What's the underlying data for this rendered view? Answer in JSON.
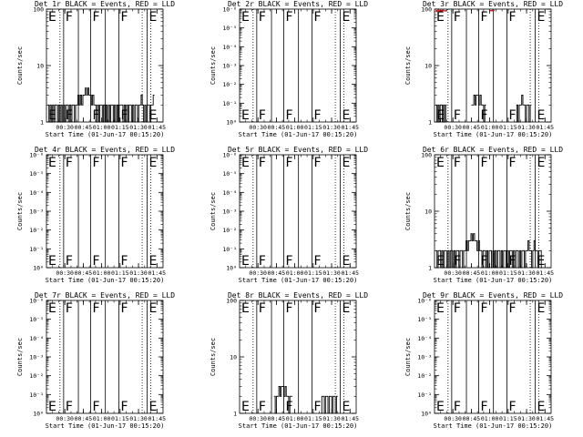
{
  "chart_data": [
    {
      "type": "line",
      "title": "Det 1r BLACK = Events, RED = LLD",
      "xlabel": "Start Time (01-Jun-17 00:15:20)",
      "ylabel": "Counts/sec",
      "yscale": "log",
      "ylim": [
        1,
        100
      ],
      "ytick_labels": [
        "1",
        "10",
        "100"
      ],
      "xlim": [
        0,
        95
      ],
      "xticks": [
        {
          "label": "00:30",
          "x": 15
        },
        {
          "label": "00:45",
          "x": 30
        },
        {
          "label": "01:00",
          "x": 45
        },
        {
          "label": "01:15",
          "x": 60
        },
        {
          "label": "01:30",
          "x": 75
        },
        {
          "label": "01:45",
          "x": 90
        }
      ],
      "flags": [
        {
          "label": "E",
          "x": 0
        },
        {
          "label": "F",
          "x": 14
        },
        {
          "label": "F",
          "x": 36
        },
        {
          "label": "F",
          "x": 59
        },
        {
          "label": "E",
          "x": 82
        }
      ],
      "dotted_lines": [
        11,
        78,
        85
      ],
      "solid_lines": [
        14,
        26,
        36,
        48,
        59,
        82
      ],
      "series": [
        {
          "color": "#000000",
          "segments": [
            {
              "x0": 1,
              "x1": 88,
              "values": [
                2,
                1,
                2,
                1,
                2,
                1,
                2,
                2,
                1,
                2,
                1,
                2,
                1,
                2,
                1,
                2,
                2,
                1,
                2,
                1,
                2,
                2,
                1,
                2,
                2,
                3,
                2,
                3,
                2,
                3,
                3,
                4,
                3,
                4,
                3,
                3,
                2,
                3,
                2,
                2,
                1,
                2,
                1,
                2,
                2,
                1,
                2,
                1,
                2,
                1,
                2,
                1,
                2,
                2,
                1,
                2,
                1,
                2,
                1,
                2,
                2,
                2,
                1,
                2,
                1,
                2,
                1,
                2,
                2,
                1,
                2,
                1,
                2,
                2,
                1,
                2,
                2,
                3,
                2,
                1,
                2,
                1,
                2,
                2,
                1,
                2,
                2,
                3
              ]
            }
          ]
        }
      ]
    },
    {
      "type": "line",
      "title": "Det 2r BLACK = Events, RED = LLD",
      "xlabel": "Start Time (01-Jun-17 00:15:20)",
      "ylabel": "Counts/sec",
      "yscale": "log",
      "ylim": [
        1,
        1000000
      ],
      "ytick_labels": [
        "10⁰",
        "10⁻¹",
        "10⁻²",
        "10⁻³",
        "10⁻⁴",
        "10⁻⁵",
        "10⁻⁶"
      ],
      "xlim": [
        0,
        95
      ],
      "xticks": [
        {
          "label": "00:30",
          "x": 15
        },
        {
          "label": "00:45",
          "x": 30
        },
        {
          "label": "01:00",
          "x": 45
        },
        {
          "label": "01:15",
          "x": 60
        },
        {
          "label": "01:30",
          "x": 75
        },
        {
          "label": "01:45",
          "x": 90
        }
      ],
      "flags": [
        {
          "label": "E",
          "x": 0
        },
        {
          "label": "F",
          "x": 14
        },
        {
          "label": "F",
          "x": 36
        },
        {
          "label": "F",
          "x": 59
        },
        {
          "label": "E",
          "x": 82
        }
      ],
      "dotted_lines": [
        11,
        78,
        85
      ],
      "solid_lines": [
        14,
        26,
        36,
        48,
        59,
        82
      ],
      "series": []
    },
    {
      "type": "line",
      "title": "Det 3r BLACK = Events, RED = LLD",
      "xlabel": "Start Time (01-Jun-17 00:15:20)",
      "ylabel": "Counts/sec",
      "yscale": "log",
      "ylim": [
        1,
        100
      ],
      "ytick_labels": [
        "1",
        "10",
        "100"
      ],
      "xlim": [
        0,
        95
      ],
      "xticks": [
        {
          "label": "00:30",
          "x": 15
        },
        {
          "label": "00:45",
          "x": 30
        },
        {
          "label": "01:00",
          "x": 45
        },
        {
          "label": "01:15",
          "x": 60
        },
        {
          "label": "01:30",
          "x": 75
        },
        {
          "label": "01:45",
          "x": 90
        }
      ],
      "flags": [
        {
          "label": "E",
          "x": 0
        },
        {
          "label": "F",
          "x": 14
        },
        {
          "label": "F",
          "x": 36
        },
        {
          "label": "F",
          "x": 59
        },
        {
          "label": "E",
          "x": 82
        }
      ],
      "dotted_lines": [
        11,
        78,
        85
      ],
      "solid_lines": [
        14,
        26,
        36,
        48,
        59,
        82
      ],
      "series": [
        {
          "color": "#000000",
          "segments": [
            {
              "x0": 1,
              "x1": 10,
              "values": [
                2,
                1,
                2,
                1,
                2,
                2,
                1,
                2,
                1,
                2
              ]
            },
            {
              "x0": 30,
              "x1": 42,
              "values": [
                2,
                2,
                3,
                2,
                3,
                3,
                2,
                3,
                2,
                2,
                1,
                2
              ]
            },
            {
              "x0": 66,
              "x1": 79,
              "values": [
                1,
                2,
                1,
                2,
                2,
                3,
                2,
                2,
                1,
                2,
                2,
                1,
                2
              ]
            }
          ]
        },
        {
          "color": "#cc0000",
          "segments": [
            {
              "x0": 1,
              "x1": 10,
              "values": [
                95,
                90,
                96,
                92,
                95,
                93,
                96,
                94,
                92,
                95
              ]
            },
            {
              "x0": 45,
              "x1": 49,
              "values": [
                95,
                93,
                96,
                94
              ]
            }
          ]
        }
      ]
    },
    {
      "type": "line",
      "title": "Det 4r BLACK = Events, RED = LLD",
      "xlabel": "Start Time (01-Jun-17 00:15:20)",
      "ylabel": "Counts/sec",
      "yscale": "log",
      "ylim": [
        1,
        1000000
      ],
      "ytick_labels": [
        "10⁰",
        "10⁻¹",
        "10⁻²",
        "10⁻³",
        "10⁻⁴",
        "10⁻⁵",
        "10⁻⁶"
      ],
      "xlim": [
        0,
        95
      ],
      "xticks": [
        {
          "label": "00:30",
          "x": 15
        },
        {
          "label": "00:45",
          "x": 30
        },
        {
          "label": "01:00",
          "x": 45
        },
        {
          "label": "01:15",
          "x": 60
        },
        {
          "label": "01:30",
          "x": 75
        },
        {
          "label": "01:45",
          "x": 90
        }
      ],
      "flags": [
        {
          "label": "E",
          "x": 0
        },
        {
          "label": "F",
          "x": 14
        },
        {
          "label": "F",
          "x": 36
        },
        {
          "label": "F",
          "x": 59
        },
        {
          "label": "E",
          "x": 82
        }
      ],
      "dotted_lines": [
        11,
        78,
        85
      ],
      "solid_lines": [
        14,
        26,
        36,
        48,
        59,
        82
      ],
      "series": []
    },
    {
      "type": "line",
      "title": "Det 5r BLACK = Events, RED = LLD",
      "xlabel": "Start Time (01-Jun-17 00:15:20)",
      "ylabel": "Counts/sec",
      "yscale": "log",
      "ylim": [
        1,
        1000000
      ],
      "ytick_labels": [
        "10⁰",
        "10⁻¹",
        "10⁻²",
        "10⁻³",
        "10⁻⁴",
        "10⁻⁵",
        "10⁻⁶"
      ],
      "xlim": [
        0,
        95
      ],
      "xticks": [
        {
          "label": "00:30",
          "x": 15
        },
        {
          "label": "00:45",
          "x": 30
        },
        {
          "label": "01:00",
          "x": 45
        },
        {
          "label": "01:15",
          "x": 60
        },
        {
          "label": "01:30",
          "x": 75
        },
        {
          "label": "01:45",
          "x": 90
        }
      ],
      "flags": [
        {
          "label": "E",
          "x": 0
        },
        {
          "label": "F",
          "x": 14
        },
        {
          "label": "F",
          "x": 36
        },
        {
          "label": "F",
          "x": 59
        },
        {
          "label": "E",
          "x": 82
        }
      ],
      "dotted_lines": [
        11,
        78,
        85
      ],
      "solid_lines": [
        14,
        26,
        36,
        48,
        59,
        82
      ],
      "series": []
    },
    {
      "type": "line",
      "title": "Det 6r BLACK = Events, RED = LLD",
      "xlabel": "Start Time (01-Jun-17 00:15:20)",
      "ylabel": "Counts/sec",
      "yscale": "log",
      "ylim": [
        1,
        100
      ],
      "ytick_labels": [
        "1",
        "10",
        "100"
      ],
      "xlim": [
        0,
        95
      ],
      "xticks": [
        {
          "label": "00:30",
          "x": 15
        },
        {
          "label": "00:45",
          "x": 30
        },
        {
          "label": "01:00",
          "x": 45
        },
        {
          "label": "01:15",
          "x": 60
        },
        {
          "label": "01:30",
          "x": 75
        },
        {
          "label": "01:45",
          "x": 90
        }
      ],
      "flags": [
        {
          "label": "E",
          "x": 0
        },
        {
          "label": "F",
          "x": 14
        },
        {
          "label": "F",
          "x": 36
        },
        {
          "label": "F",
          "x": 59
        },
        {
          "label": "E",
          "x": 82
        }
      ],
      "dotted_lines": [
        11,
        78,
        85
      ],
      "solid_lines": [
        14,
        26,
        36,
        48,
        59,
        82
      ],
      "series": [
        {
          "color": "#000000",
          "segments": [
            {
              "x0": 1,
              "x1": 88,
              "values": [
                2,
                1,
                2,
                2,
                1,
                2,
                1,
                2,
                2,
                1,
                2,
                1,
                2,
                2,
                1,
                2,
                1,
                2,
                2,
                1,
                2,
                2,
                1,
                2,
                2,
                3,
                2,
                3,
                3,
                4,
                3,
                4,
                3,
                3,
                2,
                3,
                2,
                2,
                1,
                2,
                2,
                1,
                2,
                1,
                2,
                2,
                1,
                2,
                1,
                2,
                1,
                2,
                2,
                1,
                2,
                1,
                2,
                2,
                1,
                2,
                1,
                2,
                2,
                1,
                2,
                1,
                2,
                2,
                1,
                2,
                1,
                2,
                2,
                1,
                2,
                2,
                3,
                2,
                2,
                1,
                2,
                3,
                2,
                2,
                1,
                2,
                2,
                1
              ]
            }
          ]
        }
      ]
    },
    {
      "type": "line",
      "title": "Det 7r BLACK = Events, RED = LLD",
      "xlabel": "Start Time (01-Jun-17 00:15:20)",
      "ylabel": "Counts/sec",
      "yscale": "log",
      "ylim": [
        1,
        1000000
      ],
      "ytick_labels": [
        "10⁰",
        "10⁻¹",
        "10⁻²",
        "10⁻³",
        "10⁻⁴",
        "10⁻⁵",
        "10⁻⁶"
      ],
      "xlim": [
        0,
        95
      ],
      "xticks": [
        {
          "label": "00:30",
          "x": 15
        },
        {
          "label": "00:45",
          "x": 30
        },
        {
          "label": "01:00",
          "x": 45
        },
        {
          "label": "01:15",
          "x": 60
        },
        {
          "label": "01:30",
          "x": 75
        },
        {
          "label": "01:45",
          "x": 90
        }
      ],
      "flags": [
        {
          "label": "E",
          "x": 0
        },
        {
          "label": "F",
          "x": 14
        },
        {
          "label": "F",
          "x": 36
        },
        {
          "label": "F",
          "x": 59
        },
        {
          "label": "E",
          "x": 82
        }
      ],
      "dotted_lines": [
        11,
        78,
        85
      ],
      "solid_lines": [
        14,
        26,
        36,
        48,
        59,
        82
      ],
      "series": []
    },
    {
      "type": "line",
      "title": "Det 8r BLACK = Events, RED = LLD",
      "xlabel": "Start Time (01-Jun-17 00:15:20)",
      "ylabel": "Counts/sec",
      "yscale": "log",
      "ylim": [
        1,
        100
      ],
      "ytick_labels": [
        "1",
        "10",
        "100"
      ],
      "xlim": [
        0,
        95
      ],
      "xticks": [
        {
          "label": "00:30",
          "x": 15
        },
        {
          "label": "00:45",
          "x": 30
        },
        {
          "label": "01:00",
          "x": 45
        },
        {
          "label": "01:15",
          "x": 60
        },
        {
          "label": "01:30",
          "x": 75
        },
        {
          "label": "01:45",
          "x": 90
        }
      ],
      "flags": [
        {
          "label": "E",
          "x": 0
        },
        {
          "label": "F",
          "x": 14
        },
        {
          "label": "F",
          "x": 36
        },
        {
          "label": "F",
          "x": 59
        },
        {
          "label": "E",
          "x": 82
        }
      ],
      "dotted_lines": [
        11,
        78,
        85
      ],
      "solid_lines": [
        14,
        26,
        36,
        48,
        59,
        82
      ],
      "series": [
        {
          "color": "#000000",
          "segments": [
            {
              "x0": 28,
              "x1": 43,
              "values": [
                2,
                1,
                2,
                2,
                3,
                2,
                3,
                3,
                2,
                3,
                2,
                2,
                1,
                2,
                2
              ]
            },
            {
              "x0": 66,
              "x1": 80,
              "values": [
                1,
                2,
                2,
                1,
                2,
                2,
                1,
                2,
                2,
                1,
                2,
                2,
                1,
                2
              ]
            }
          ]
        }
      ]
    },
    {
      "type": "line",
      "title": "Det 9r BLACK = Events, RED = LLD",
      "xlabel": "Start Time (01-Jun-17 00:15:20)",
      "ylabel": "Counts/sec",
      "yscale": "log",
      "ylim": [
        1,
        1000000
      ],
      "ytick_labels": [
        "10⁰",
        "10⁻¹",
        "10⁻²",
        "10⁻³",
        "10⁻⁴",
        "10⁻⁵",
        "10⁻⁶"
      ],
      "xlim": [
        0,
        95
      ],
      "xticks": [
        {
          "label": "00:30",
          "x": 15
        },
        {
          "label": "00:45",
          "x": 30
        },
        {
          "label": "01:00",
          "x": 45
        },
        {
          "label": "01:15",
          "x": 60
        },
        {
          "label": "01:30",
          "x": 75
        },
        {
          "label": "01:45",
          "x": 90
        }
      ],
      "flags": [
        {
          "label": "E",
          "x": 0
        },
        {
          "label": "F",
          "x": 14
        },
        {
          "label": "F",
          "x": 36
        },
        {
          "label": "F",
          "x": 59
        },
        {
          "label": "E",
          "x": 82
        }
      ],
      "dotted_lines": [
        11,
        78,
        85
      ],
      "solid_lines": [
        14,
        26,
        36,
        48,
        59,
        82
      ],
      "series": []
    }
  ]
}
